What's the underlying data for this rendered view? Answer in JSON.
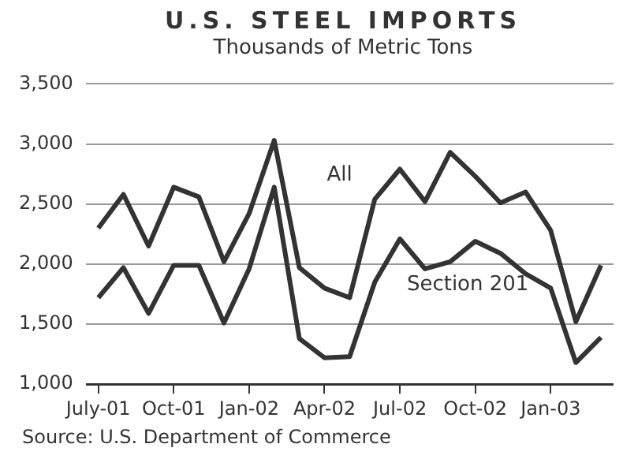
{
  "chart_data": {
    "type": "line",
    "title": "U.S. STEEL IMPORTS",
    "subtitle": "Thousands of Metric Tons",
    "categories": [
      "July-01",
      null,
      null,
      "Oct-01",
      null,
      null,
      "Jan-02",
      null,
      null,
      "Apr-02",
      null,
      null,
      "Jul-02",
      null,
      null,
      "Oct-02",
      null,
      null,
      "Jan-03",
      null,
      null
    ],
    "series": [
      {
        "name": "All",
        "color": "#333333",
        "values": [
          2300,
          2580,
          2150,
          2640,
          2560,
          2020,
          2420,
          3030,
          1970,
          1800,
          1720,
          2540,
          2790,
          2520,
          2930,
          2730,
          2510,
          2600,
          2280,
          1520,
          1990
        ]
      },
      {
        "name": "Section 201",
        "color": "#333333",
        "values": [
          1720,
          1970,
          1590,
          1990,
          1990,
          1510,
          1960,
          2640,
          1380,
          1220,
          1230,
          1850,
          2210,
          1960,
          2020,
          2190,
          2090,
          1920,
          1800,
          1180,
          1390
        ]
      }
    ],
    "ylim": [
      1000,
      3500
    ],
    "yticks": [
      {
        "value": 1000,
        "label": "1,000"
      },
      {
        "value": 1500,
        "label": "1,500"
      },
      {
        "value": 2000,
        "label": "2,000"
      },
      {
        "value": 2500,
        "label": "2,500"
      },
      {
        "value": 3000,
        "label": "3,000"
      },
      {
        "value": 3500,
        "label": "3,500"
      }
    ],
    "grid": "y",
    "legend": false,
    "marker": "none",
    "line_style": "solid",
    "annotations": [
      "Source: U.S. Department of Commerce"
    ]
  }
}
